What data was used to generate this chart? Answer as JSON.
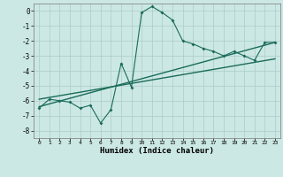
{
  "title": "",
  "xlabel": "Humidex (Indice chaleur)",
  "background_color": "#cce8e4",
  "grid_color": "#aaccc8",
  "line_color": "#1a6b5a",
  "xlim": [
    -0.5,
    23.5
  ],
  "ylim": [
    -8.5,
    0.5
  ],
  "xticks": [
    0,
    1,
    2,
    3,
    4,
    5,
    6,
    7,
    8,
    9,
    10,
    11,
    12,
    13,
    14,
    15,
    16,
    17,
    18,
    19,
    20,
    21,
    22,
    23
  ],
  "yticks": [
    0,
    -1,
    -2,
    -3,
    -4,
    -5,
    -6,
    -7,
    -8
  ],
  "curve1_x": [
    0,
    1,
    2,
    3,
    4,
    5,
    6,
    7,
    8,
    9,
    10,
    11,
    12,
    13,
    14,
    15,
    16,
    17,
    18,
    19,
    20,
    21,
    22,
    23
  ],
  "curve1_y": [
    -6.5,
    -5.9,
    -6.0,
    -6.1,
    -6.5,
    -6.3,
    -7.5,
    -6.6,
    -3.5,
    -5.1,
    -0.1,
    0.3,
    -0.1,
    -0.6,
    -2.0,
    -2.2,
    -2.5,
    -2.7,
    -3.0,
    -2.7,
    -3.0,
    -3.3,
    -2.1,
    -2.1
  ],
  "line1_x": [
    0,
    23
  ],
  "line1_y": [
    -6.4,
    -2.1
  ],
  "line2_x": [
    0,
    23
  ],
  "line2_y": [
    -5.9,
    -3.2
  ]
}
